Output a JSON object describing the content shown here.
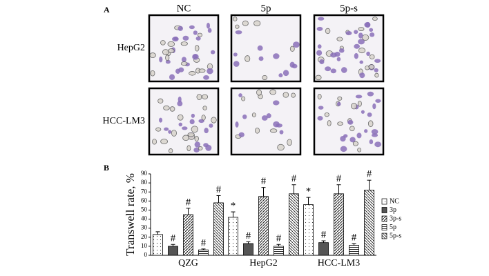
{
  "panel_a": {
    "label": "A",
    "columns": [
      "NC",
      "5p",
      "5p-s"
    ],
    "rows": [
      "HepG2",
      "HCC-LM3"
    ]
  },
  "chart_data": {
    "type": "bar",
    "panel_label": "B",
    "ylabel": "Transwell rate, %",
    "categories": [
      "QZG",
      "HepG2",
      "HCC-LM3"
    ],
    "series": [
      {
        "name": "NC",
        "color": "#ffffff",
        "pattern": "dots",
        "values": [
          23,
          42,
          56
        ],
        "errors": [
          3,
          6,
          8
        ],
        "annotations": [
          null,
          "*",
          "*"
        ]
      },
      {
        "name": "3p",
        "color": "#555555",
        "pattern": "solid",
        "values": [
          10,
          13,
          14
        ],
        "errors": [
          2,
          2,
          2
        ],
        "annotations": [
          "#",
          "#",
          "#"
        ]
      },
      {
        "name": "3p-s",
        "color": "#ffffff",
        "pattern": "diag",
        "values": [
          45,
          65,
          68
        ],
        "errors": [
          7,
          10,
          10
        ],
        "annotations": [
          "#",
          "#",
          "#"
        ]
      },
      {
        "name": "5p",
        "color": "#ffffff",
        "pattern": "hlines",
        "values": [
          6,
          10,
          11
        ],
        "errors": [
          1,
          2,
          2
        ],
        "annotations": [
          "#",
          "#",
          "#"
        ]
      },
      {
        "name": "5p-s",
        "color": "#ffffff",
        "pattern": "backdiag",
        "values": [
          58,
          68,
          72
        ],
        "errors": [
          8,
          10,
          11
        ],
        "annotations": [
          "#",
          "#",
          "#"
        ]
      }
    ],
    "ylim": [
      0,
      90
    ],
    "yticks": [
      0,
      10,
      20,
      30,
      40,
      50,
      60,
      70,
      80,
      90
    ],
    "legend": "right"
  }
}
